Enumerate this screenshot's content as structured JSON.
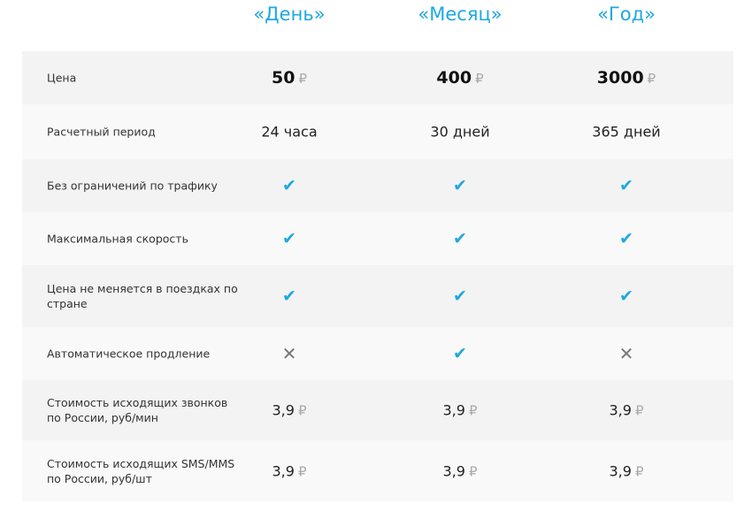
{
  "plans": [
    "«День»",
    "«Месяц»",
    "«Год»"
  ],
  "currency": "₽",
  "accent_color": "#1fa8e0",
  "rows": [
    {
      "label": "Цена",
      "type": "price",
      "values": [
        "50",
        "400",
        "3000"
      ]
    },
    {
      "label": "Расчетный период",
      "type": "text",
      "values": [
        "24 часа",
        "30 дней",
        "365 дней"
      ]
    },
    {
      "label": "Без ограничений по трафику",
      "type": "bool",
      "values": [
        true,
        true,
        true
      ]
    },
    {
      "label": "Максимальная скорость",
      "type": "bool",
      "values": [
        true,
        true,
        true
      ]
    },
    {
      "label": "Цена не меняется в поездках по стране",
      "type": "bool",
      "values": [
        true,
        true,
        true
      ]
    },
    {
      "label": "Автоматическое продление",
      "type": "bool",
      "values": [
        false,
        true,
        false
      ]
    },
    {
      "label": "Стоимость исходящих звонков по России, руб/мин",
      "type": "money",
      "values": [
        "3,9",
        "3,9",
        "3,9"
      ]
    },
    {
      "label": "Стоимость исходящих SMS/MMS по России, руб/шт",
      "type": "money",
      "values": [
        "3,9",
        "3,9",
        "3,9"
      ]
    }
  ]
}
